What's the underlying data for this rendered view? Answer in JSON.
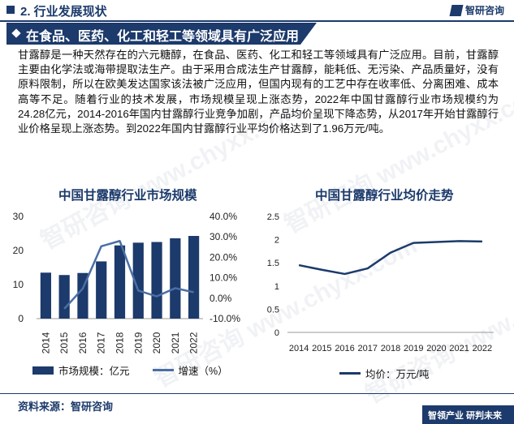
{
  "header": {
    "section_title": "2. 行业发展现状",
    "logo_text": "智研咨询"
  },
  "banner": {
    "title": "在食品、医药、化工和轻工等领域具有广泛应用"
  },
  "paragraph": "甘露醇是一种天然存在的六元糖醇，在食品、医药、化工和轻工等领域具有广泛应用。目前，甘露醇主要由化学法或海带提取法生产。由于采用合成法生产甘露醇，能耗低、无污染、产品质量好，没有原料限制，所以在欧美发达国家该法被广泛应用，但国内现有的工艺中存在收率低、分离困难、成本高等不足。随着行业的技术发展，市场规模呈现上涨态势，2022年中国甘露醇行业市场规模约为24.28亿元，2014-2016年国内甘露醇行业竞争加剧，产品均价呈现下降态势，从2017年开始甘露醇行业价格呈现上涨态势。到2022年国内甘露醇行业平均价格达到了1.96万元/吨。",
  "watermark": "智研咨询 www.chyxx.com",
  "chart_data": [
    {
      "type": "bar",
      "title": "中国甘露醇行业市场规模",
      "categories": [
        "2014",
        "2015",
        "2016",
        "2017",
        "2018",
        "2019",
        "2020",
        "2021",
        "2022"
      ],
      "series": [
        {
          "name": "市场规模：亿元",
          "type": "bar",
          "axis": "left",
          "color": "#1c3a6b",
          "values": [
            13.5,
            12.8,
            13.4,
            16.8,
            21.5,
            22.3,
            22.5,
            23.6,
            24.28
          ]
        },
        {
          "name": "增速（%）",
          "type": "line",
          "axis": "right",
          "color": "#4a6fa5",
          "values": [
            null,
            -5.2,
            4.7,
            25.4,
            28.0,
            3.7,
            0.9,
            4.9,
            2.9
          ]
        }
      ],
      "y_left": {
        "ticks": [
          0,
          10,
          20,
          30
        ],
        "range": [
          0,
          30
        ]
      },
      "y_right": {
        "ticks": [
          "40.0%",
          "30.0%",
          "20.0%",
          "10.0%",
          "0.0%",
          "-10.0%"
        ],
        "range": [
          -10,
          40
        ]
      },
      "legend_position": "bottom",
      "grid": false
    },
    {
      "type": "line",
      "title": "中国甘露醇行业均价走势",
      "categories": [
        "2014",
        "2015",
        "2016",
        "2017",
        "2018",
        "2019",
        "2020",
        "2021",
        "2022"
      ],
      "series": [
        {
          "name": "均价：万元/吨",
          "color": "#1c3a6b",
          "values": [
            1.45,
            1.35,
            1.26,
            1.38,
            1.72,
            1.93,
            1.95,
            1.97,
            1.96
          ]
        }
      ],
      "y": {
        "ticks": [
          "0",
          "0.5",
          "1",
          "1.5",
          "2",
          "2.5"
        ],
        "range": [
          0,
          2.5
        ]
      },
      "legend_position": "bottom",
      "grid": false
    }
  ],
  "footer": {
    "source": "资料来源：智研咨询",
    "tag": "智领产业  研判未来"
  }
}
